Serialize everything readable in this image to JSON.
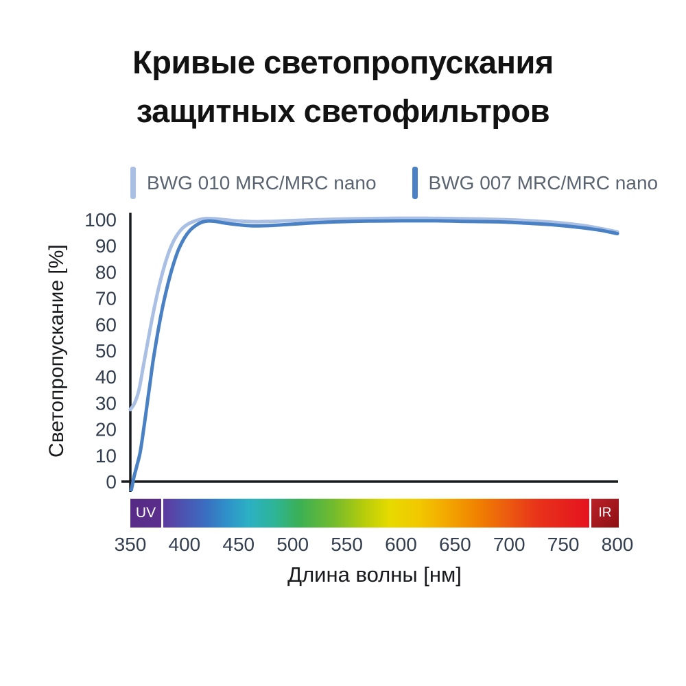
{
  "title": {
    "line1": "Кривые светопропускания",
    "line2": "защитных светофильтров"
  },
  "legend": [
    {
      "label": "BWG 010 MRC/MRC nano",
      "color": "#a9bfe3"
    },
    {
      "label": "BWG 007 MRC/MRC nano",
      "color": "#4a80c4"
    }
  ],
  "axes": {
    "y_label": "Светопропускание [%]",
    "x_label": "Длина волны [нм]"
  },
  "spectrum_bar": {
    "uv_label": "UV",
    "ir_label": "IR",
    "uv_color": "#552a83",
    "ir_color": "#a01b22",
    "gradient": [
      "#5e3a9e 0%",
      "#4b55b2 5%",
      "#3a6ec1 10%",
      "#2f92c9 15%",
      "#2bb0c4 20%",
      "#2eb498 26%",
      "#3bb054 32%",
      "#73bb2d 40%",
      "#b5cc0c 47%",
      "#e6da00 53%",
      "#f2c800 60%",
      "#f3a500 67%",
      "#f08000 74%",
      "#ec5a10 81%",
      "#e8321a 88%",
      "#e5131f 100%"
    ]
  },
  "chart_data": {
    "type": "line",
    "title": "Кривые светопропускания защитных светофильтров",
    "xlabel": "Длина волны [нм]",
    "ylabel": "Светопропускание [%]",
    "xlim": [
      350,
      800
    ],
    "ylim": [
      0,
      100
    ],
    "x_ticks": [
      350,
      400,
      450,
      500,
      550,
      600,
      650,
      700,
      750,
      800
    ],
    "y_ticks": [
      0,
      10,
      20,
      30,
      40,
      50,
      60,
      70,
      80,
      90,
      100
    ],
    "grid": false,
    "legend_position": "top",
    "series": [
      {
        "name": "BWG 010 MRC/MRC nano",
        "color": "#a9bfe3",
        "points": [
          [
            350,
            27.5
          ],
          [
            354,
            30
          ],
          [
            358,
            35
          ],
          [
            362,
            44
          ],
          [
            366,
            53
          ],
          [
            370,
            62
          ],
          [
            374,
            70
          ],
          [
            378,
            77
          ],
          [
            382,
            83
          ],
          [
            386,
            88
          ],
          [
            390,
            91.8
          ],
          [
            394,
            94.6
          ],
          [
            398,
            96.6
          ],
          [
            403,
            98.2
          ],
          [
            408,
            99.2
          ],
          [
            414,
            100
          ],
          [
            420,
            100.4
          ],
          [
            428,
            100.3
          ],
          [
            440,
            99.8
          ],
          [
            452,
            99.4
          ],
          [
            465,
            99.2
          ],
          [
            480,
            99.3
          ],
          [
            500,
            99.6
          ],
          [
            520,
            99.9
          ],
          [
            545,
            100.2
          ],
          [
            575,
            100.4
          ],
          [
            610,
            100.5
          ],
          [
            645,
            100.4
          ],
          [
            675,
            100.2
          ],
          [
            700,
            99.9
          ],
          [
            725,
            99.4
          ],
          [
            750,
            98.6
          ],
          [
            775,
            97.3
          ],
          [
            800,
            95.3
          ]
        ]
      },
      {
        "name": "BWG 007 MRC/MRC nano",
        "color": "#4a80c4",
        "points": [
          [
            350.5,
            -4
          ],
          [
            352,
            -1
          ],
          [
            353.5,
            2
          ],
          [
            356,
            6
          ],
          [
            359,
            11
          ],
          [
            362,
            19
          ],
          [
            365,
            28
          ],
          [
            368,
            37
          ],
          [
            371,
            46
          ],
          [
            375,
            56
          ],
          [
            379,
            65
          ],
          [
            383,
            72.5
          ],
          [
            387,
            79
          ],
          [
            391,
            84.5
          ],
          [
            395,
            89
          ],
          [
            400,
            93
          ],
          [
            405,
            95.8
          ],
          [
            410,
            97.6
          ],
          [
            415,
            98.8
          ],
          [
            421,
            99.4
          ],
          [
            428,
            99.3
          ],
          [
            438,
            98.6
          ],
          [
            450,
            98
          ],
          [
            463,
            97.6
          ],
          [
            478,
            97.7
          ],
          [
            495,
            98.1
          ],
          [
            515,
            98.6
          ],
          [
            540,
            99.1
          ],
          [
            570,
            99.4
          ],
          [
            600,
            99.5
          ],
          [
            630,
            99.5
          ],
          [
            660,
            99.3
          ],
          [
            690,
            99.1
          ],
          [
            715,
            98.6
          ],
          [
            740,
            98
          ],
          [
            765,
            97
          ],
          [
            783,
            96
          ],
          [
            800,
            94.6
          ]
        ]
      }
    ]
  }
}
